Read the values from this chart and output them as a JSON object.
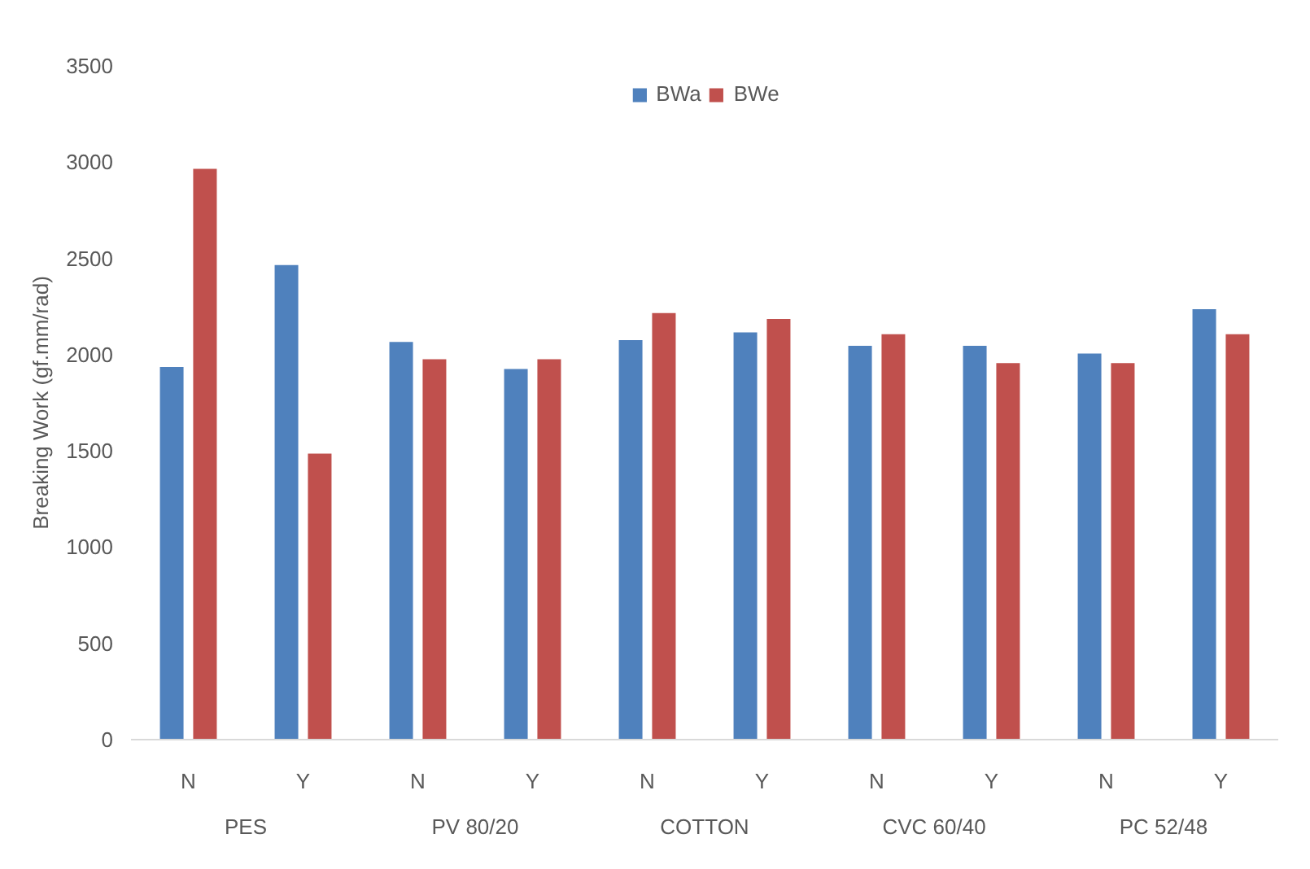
{
  "chart_data": {
    "type": "bar",
    "ylabel": "Breaking Work (gf.mm/rad)",
    "categories": [
      "N",
      "Y",
      "N",
      "Y",
      "N",
      "Y",
      "N",
      "Y",
      "N",
      "Y"
    ],
    "series": [
      {
        "name": "BWa",
        "color": "#4f81bd",
        "values": [
          1940,
          2470,
          2070,
          1930,
          2080,
          2120,
          2050,
          2050,
          2010,
          2240
        ]
      },
      {
        "name": "BWe",
        "color": "#c0504d",
        "values": [
          2970,
          1490,
          1980,
          1980,
          2220,
          2190,
          2110,
          1960,
          1960,
          2110
        ]
      }
    ],
    "ylim": [
      0,
      3500
    ],
    "yticks": [
      0,
      500,
      1000,
      1500,
      2000,
      2500,
      3000,
      3500
    ],
    "grid": false,
    "legend": "top",
    "annotations": [
      "PES",
      "PV 80/20",
      "COTTON",
      "CVC 60/40",
      "PC 52/48"
    ]
  }
}
